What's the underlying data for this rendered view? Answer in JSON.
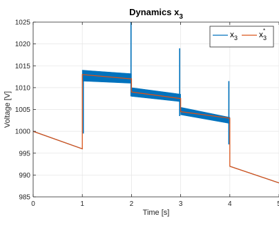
{
  "chart_data": {
    "type": "line",
    "title": "Dynamics x",
    "title_subscript": "3",
    "xlabel": "Time [s]",
    "ylabel": "Voltage [V]",
    "xlim": [
      0,
      5
    ],
    "ylim": [
      985,
      1025
    ],
    "xticks": [
      0,
      1,
      2,
      3,
      4,
      5
    ],
    "yticks": [
      985,
      990,
      995,
      1000,
      1005,
      1010,
      1015,
      1020,
      1025
    ],
    "grid": true,
    "legend_position": "top-right",
    "colors": {
      "x3": "#0072BD",
      "x3_ref": "#D95319",
      "grid": "#e6e6e6",
      "axis": "#262626"
    },
    "series": [
      {
        "name": "x3",
        "legend_base": "x",
        "legend_sub": "3",
        "legend_sup": "",
        "color": "#0072BD",
        "style": "noisy-band",
        "segments": [
          {
            "x": [
              0,
              1.0
            ],
            "y": [
              1000,
              996
            ],
            "band_top": [
              1000,
              996
            ],
            "band_bot": [
              1000,
              996
            ]
          },
          {
            "x": [
              1.0,
              2.0
            ],
            "y": [
              1013,
              1012
            ],
            "band_top": [
              1014,
              1013.2
            ],
            "band_bot": [
              1011.5,
              1011
            ]
          },
          {
            "x": [
              2.0,
              3.0
            ],
            "y": [
              1009,
              1007.5
            ],
            "band_top": [
              1010,
              1008.5
            ],
            "band_bot": [
              1008,
              1006.8
            ]
          },
          {
            "x": [
              3.0,
              4.0
            ],
            "y": [
              1004.5,
              1003
            ],
            "band_top": [
              1005.5,
              1003.2
            ],
            "band_bot": [
              1003.8,
              1001.8
            ]
          },
          {
            "x": [
              4.0,
              5.0
            ],
            "y": [
              992,
              988.2
            ],
            "band_top": [
              992,
              988.2
            ],
            "band_bot": [
              992,
              988.2
            ]
          }
        ],
        "spikes": [
          {
            "x": 1.02,
            "y_min": 999.5,
            "y_max": 1014
          },
          {
            "x": 1.99,
            "y_min": 1008,
            "y_max": 1025
          },
          {
            "x": 2.98,
            "y_min": 1003.5,
            "y_max": 1019
          },
          {
            "x": 3.98,
            "y_min": 997,
            "y_max": 1011.5
          }
        ]
      },
      {
        "name": "x3*",
        "legend_base": "x",
        "legend_sub": "3",
        "legend_sup": "*",
        "color": "#D95319",
        "style": "line",
        "x": [
          0,
          1.0,
          1.0,
          2.0,
          2.0,
          3.0,
          3.0,
          4.0,
          4.0,
          5.0
        ],
        "y": [
          1000,
          996,
          1013,
          1012,
          1009,
          1007.5,
          1004.5,
          1003,
          992,
          988.2
        ]
      }
    ]
  }
}
